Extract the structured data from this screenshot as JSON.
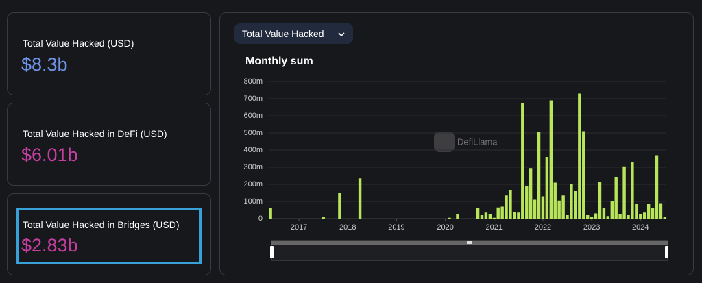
{
  "cards": [
    {
      "label": "Total Value Hacked (USD)",
      "value": "$8.3b"
    },
    {
      "label": "Total Value Hacked in DeFi (USD)",
      "value": "$6.01b"
    },
    {
      "label": "Total Value Hacked in Bridges (USD)",
      "value": "$2.83b"
    }
  ],
  "dropdown": {
    "label": "Total Value Hacked"
  },
  "chart_data": {
    "type": "bar",
    "title": "Monthly sum",
    "watermark": "DefiLlama",
    "color": "#b9e55a",
    "grid": true,
    "x": [
      2016.417,
      2016.5,
      2016.583,
      2016.667,
      2016.75,
      2016.833,
      2016.917,
      2017,
      2017.083,
      2017.167,
      2017.25,
      2017.333,
      2017.417,
      2017.5,
      2017.583,
      2017.667,
      2017.75,
      2017.833,
      2017.917,
      2018,
      2018.083,
      2018.167,
      2018.25,
      2018.333,
      2018.417,
      2018.5,
      2018.583,
      2018.667,
      2018.75,
      2018.833,
      2018.917,
      2019,
      2019.083,
      2019.167,
      2019.25,
      2019.333,
      2019.417,
      2019.5,
      2019.583,
      2019.667,
      2019.75,
      2019.833,
      2019.917,
      2020,
      2020.083,
      2020.167,
      2020.25,
      2020.333,
      2020.417,
      2020.5,
      2020.583,
      2020.667,
      2020.75,
      2020.833,
      2020.917,
      2021,
      2021.083,
      2021.167,
      2021.25,
      2021.333,
      2021.417,
      2021.5,
      2021.583,
      2021.667,
      2021.75,
      2021.833,
      2021.917,
      2022,
      2022.083,
      2022.167,
      2022.25,
      2022.333,
      2022.417,
      2022.5,
      2022.583,
      2022.667,
      2022.75,
      2022.833,
      2022.917,
      2023,
      2023.083,
      2023.167,
      2023.25,
      2023.333,
      2023.417,
      2023.5,
      2023.583,
      2023.667,
      2023.75,
      2023.833,
      2023.917,
      2024,
      2024.083,
      2024.167,
      2024.25,
      2024.333,
      2024.417,
      2024.5
    ],
    "values": [
      60,
      0,
      0,
      0,
      0,
      0,
      0,
      0,
      0,
      0,
      0,
      0,
      0,
      8,
      0,
      0,
      0,
      150,
      0,
      0,
      0,
      0,
      235,
      0,
      0,
      0,
      0,
      0,
      0,
      0,
      0,
      0,
      0,
      0,
      0,
      0,
      0,
      0,
      0,
      0,
      0,
      0,
      0,
      0,
      5,
      0,
      25,
      0,
      0,
      0,
      0,
      60,
      20,
      35,
      25,
      5,
      65,
      70,
      135,
      165,
      40,
      35,
      675,
      190,
      295,
      110,
      505,
      130,
      360,
      690,
      210,
      105,
      135,
      20,
      200,
      160,
      730,
      510,
      20,
      10,
      30,
      215,
      60,
      15,
      100,
      240,
      25,
      305,
      20,
      330,
      85,
      25,
      35,
      85,
      60,
      370,
      90,
      10
    ],
    "xlim": [
      2016.38,
      2024.53
    ],
    "xticks": [
      2017,
      2018,
      2019,
      2020,
      2021,
      2022,
      2023,
      2024
    ],
    "ylim": [
      0,
      800
    ],
    "yticks": [
      0,
      {
        "value": 100,
        "label": "100m"
      },
      {
        "value": 200,
        "label": "200m"
      },
      {
        "value": 300,
        "label": "300m"
      },
      {
        "value": 400,
        "label": "400m"
      },
      {
        "value": 500,
        "label": "500m"
      },
      {
        "value": 600,
        "label": "600m"
      },
      {
        "value": 700,
        "label": "700m"
      },
      {
        "value": 800,
        "label": "800m"
      }
    ]
  }
}
